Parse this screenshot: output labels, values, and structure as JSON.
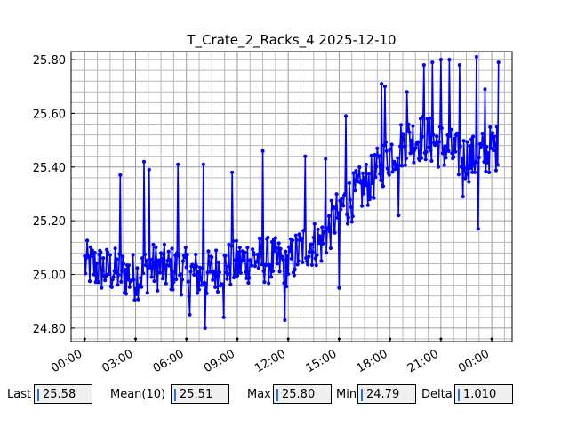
{
  "chart_data": {
    "type": "line",
    "title": "T_Crate_2_Racks_4 2025-12-10",
    "xlabel": "",
    "ylabel": "",
    "x_ticks": [
      "00:00",
      "03:00",
      "06:00",
      "09:00",
      "12:00",
      "15:00",
      "18:00",
      "21:00",
      "00:00"
    ],
    "x_range_hours": [
      -0.8,
      25.2
    ],
    "y_ticks": [
      "24.80",
      "25.00",
      "25.20",
      "25.40",
      "25.60",
      "25.80"
    ],
    "ylim": [
      24.75,
      25.83
    ],
    "grid": true,
    "series": [
      {
        "color": "#0000ff",
        "marker": "circle",
        "sample_interval_hours": 0.05,
        "x_start_hours": 0.0,
        "x_end_hours": 24.0,
        "anchors_x_hours": [
          0,
          1,
          2,
          3,
          4,
          5,
          6,
          7,
          8,
          9,
          10,
          11,
          12,
          13,
          14,
          15,
          16,
          17,
          18,
          19,
          20,
          21,
          22,
          23,
          24
        ],
        "anchors_y": [
          25.04,
          25.02,
          25.01,
          24.99,
          25.03,
          25.02,
          25.01,
          24.99,
          25.03,
          25.04,
          25.06,
          25.05,
          25.04,
          25.11,
          25.12,
          25.24,
          25.3,
          25.36,
          25.45,
          25.5,
          25.51,
          25.48,
          25.44,
          25.43,
          25.47
        ],
        "noise_amplitude": 0.09,
        "spikes": [
          {
            "x": 2.1,
            "y": 25.37
          },
          {
            "x": 3.5,
            "y": 25.42
          },
          {
            "x": 3.8,
            "y": 25.39
          },
          {
            "x": 5.5,
            "y": 25.41
          },
          {
            "x": 6.2,
            "y": 24.85
          },
          {
            "x": 7.0,
            "y": 25.41
          },
          {
            "x": 7.1,
            "y": 24.8
          },
          {
            "x": 8.2,
            "y": 24.84
          },
          {
            "x": 8.7,
            "y": 25.38
          },
          {
            "x": 10.5,
            "y": 25.46
          },
          {
            "x": 11.8,
            "y": 24.83
          },
          {
            "x": 13.0,
            "y": 25.44
          },
          {
            "x": 14.2,
            "y": 25.43
          },
          {
            "x": 15.4,
            "y": 25.59
          },
          {
            "x": 15.0,
            "y": 24.95
          },
          {
            "x": 17.5,
            "y": 25.71
          },
          {
            "x": 17.7,
            "y": 25.7
          },
          {
            "x": 18.5,
            "y": 25.22
          },
          {
            "x": 19.0,
            "y": 25.68
          },
          {
            "x": 20.0,
            "y": 25.78
          },
          {
            "x": 20.5,
            "y": 25.79
          },
          {
            "x": 21.0,
            "y": 25.8
          },
          {
            "x": 21.5,
            "y": 25.8
          },
          {
            "x": 22.1,
            "y": 25.78
          },
          {
            "x": 22.3,
            "y": 25.29
          },
          {
            "x": 23.1,
            "y": 25.81
          },
          {
            "x": 23.2,
            "y": 25.17
          },
          {
            "x": 23.6,
            "y": 25.69
          },
          {
            "x": 24.4,
            "y": 25.79
          }
        ]
      }
    ]
  },
  "stats": {
    "last_label": "Last",
    "last_value": "25.58",
    "mean_label": "Mean(10)",
    "mean_value": "25.51",
    "max_label": "Max",
    "max_value": "25.80",
    "min_label": "Min",
    "min_value": "24.79",
    "delta_label": "Delta",
    "delta_value": "1.010"
  }
}
